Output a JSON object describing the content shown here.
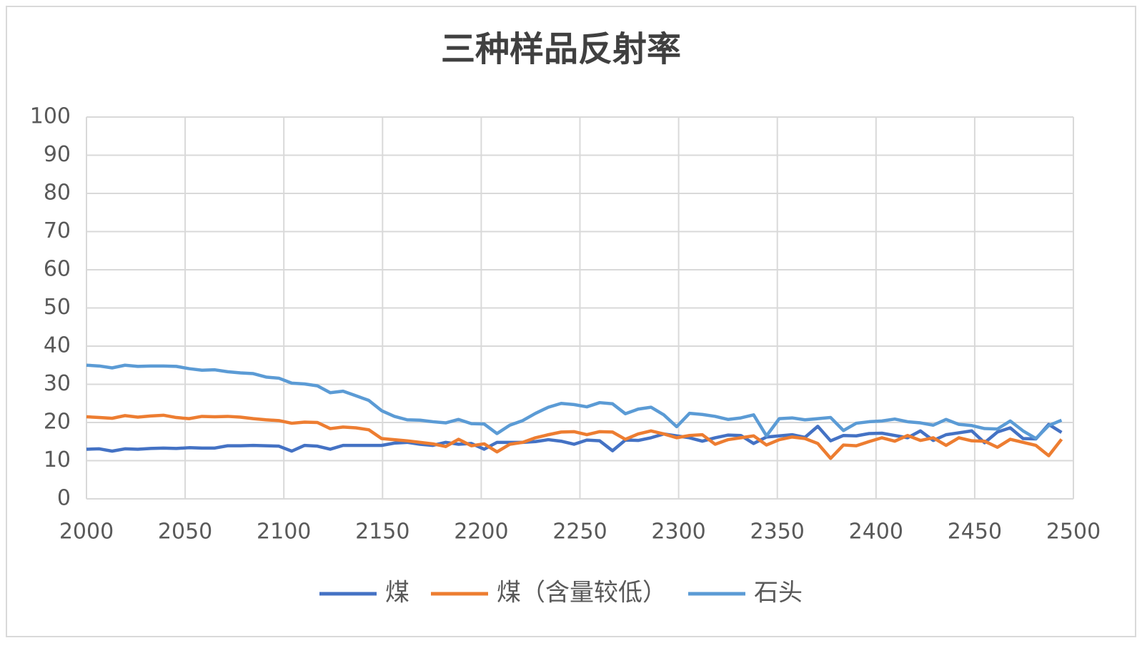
{
  "chart_data": {
    "type": "line",
    "title": "三种样品反射率",
    "x": [
      2000,
      2006.5,
      2013,
      2019.5,
      2026,
      2032.5,
      2039,
      2045.5,
      2052,
      2058.5,
      2065,
      2071.5,
      2078,
      2084.5,
      2091,
      2097.5,
      2104,
      2110.5,
      2117,
      2123.5,
      2130,
      2136.5,
      2143,
      2149.5,
      2156,
      2162.5,
      2169,
      2175.5,
      2182,
      2188.5,
      2195,
      2201.5,
      2208,
      2214.5,
      2221,
      2227.5,
      2234,
      2240.5,
      2247,
      2253.5,
      2260,
      2266.5,
      2273,
      2279.5,
      2286,
      2292.5,
      2299,
      2305.5,
      2312,
      2318.5,
      2325,
      2331.5,
      2338,
      2344.5,
      2351,
      2357.5,
      2364,
      2370.5,
      2377,
      2383.5,
      2390,
      2396.5,
      2403,
      2409.5,
      2416,
      2422.5,
      2429,
      2435.5,
      2442,
      2448.5,
      2455,
      2461.5,
      2468,
      2474.5,
      2481,
      2487.5,
      2494
    ],
    "series": [
      {
        "name": "煤",
        "color": "#4472c4",
        "values": [
          13,
          13.1,
          12.5,
          13.1,
          13,
          13.2,
          13.3,
          13.2,
          13.4,
          13.3,
          13.3,
          13.9,
          13.9,
          14,
          13.9,
          13.8,
          12.5,
          14,
          13.8,
          13,
          14,
          14,
          14,
          14,
          14.6,
          14.8,
          14.3,
          14,
          14.8,
          14.3,
          14.5,
          13,
          14.8,
          14.8,
          14.8,
          15,
          15.5,
          15.1,
          14.3,
          15.4,
          15.2,
          12.6,
          15.4,
          15.3,
          16,
          17,
          16.5,
          16,
          15.1,
          16,
          16.7,
          16.6,
          14.5,
          16.2,
          16.5,
          16.8,
          16.1,
          19,
          15.2,
          16.6,
          16.5,
          17.1,
          17.2,
          16.6,
          16,
          17.8,
          15.3,
          16.8,
          17.3,
          17.8,
          14.7,
          17.5,
          18.6,
          15.8,
          15.7,
          19.5,
          17.4
        ]
      },
      {
        "name": "煤（含量较低）",
        "color": "#ed7d31",
        "values": [
          21.5,
          21.3,
          21.1,
          21.8,
          21.4,
          21.7,
          21.9,
          21.3,
          21,
          21.6,
          21.5,
          21.6,
          21.4,
          21,
          20.7,
          20.5,
          19.8,
          20.1,
          20,
          18.4,
          18.8,
          18.6,
          18.1,
          15.8,
          15.5,
          15.2,
          14.8,
          14.4,
          13.7,
          15.6,
          13.9,
          14.4,
          12.3,
          14.3,
          14.8,
          16,
          16.8,
          17.5,
          17.6,
          16.8,
          17.6,
          17.5,
          15.6,
          17,
          17.8,
          17,
          16,
          16.6,
          16.8,
          14.3,
          15.5,
          16,
          16.5,
          14.1,
          15.5,
          16.2,
          15.8,
          14.5,
          10.6,
          14.1,
          13.9,
          15,
          16,
          15.1,
          16.6,
          15.3,
          16,
          14,
          16,
          15.2,
          15.1,
          13.5,
          15.6,
          14.8,
          14,
          11.3,
          15.6
        ]
      },
      {
        "name": "石头",
        "color": "#5b9bd5",
        "values": [
          35,
          34.8,
          34.3,
          35,
          34.7,
          34.8,
          34.8,
          34.7,
          34.1,
          33.7,
          33.8,
          33.3,
          33,
          32.8,
          31.9,
          31.6,
          30.3,
          30.1,
          29.6,
          27.8,
          28.2,
          27,
          25.8,
          23.1,
          21.6,
          20.7,
          20.6,
          20.2,
          19.9,
          20.8,
          19.7,
          19.6,
          17.1,
          19.3,
          20.5,
          22.4,
          24,
          25,
          24.7,
          24.1,
          25.2,
          24.9,
          22.3,
          23.5,
          24,
          22,
          18.9,
          22.4,
          22.1,
          21.6,
          20.8,
          21.2,
          22,
          16.5,
          21,
          21.2,
          20.7,
          21,
          21.3,
          17.9,
          19.8,
          20.2,
          20.4,
          20.9,
          20.2,
          19.9,
          19.3,
          20.8,
          19.5,
          19.2,
          18.4,
          18.3,
          20.4,
          17.8,
          15.8,
          19.2,
          20.6
        ]
      }
    ],
    "xlim": [
      2000,
      2500
    ],
    "xticks": [
      2000,
      2050,
      2100,
      2150,
      2200,
      2250,
      2300,
      2350,
      2400,
      2450,
      2500
    ],
    "ylim": [
      0,
      100
    ],
    "yticks": [
      0,
      10,
      20,
      30,
      40,
      50,
      60,
      70,
      80,
      90,
      100
    ],
    "grid": true,
    "legend": "bottom"
  }
}
